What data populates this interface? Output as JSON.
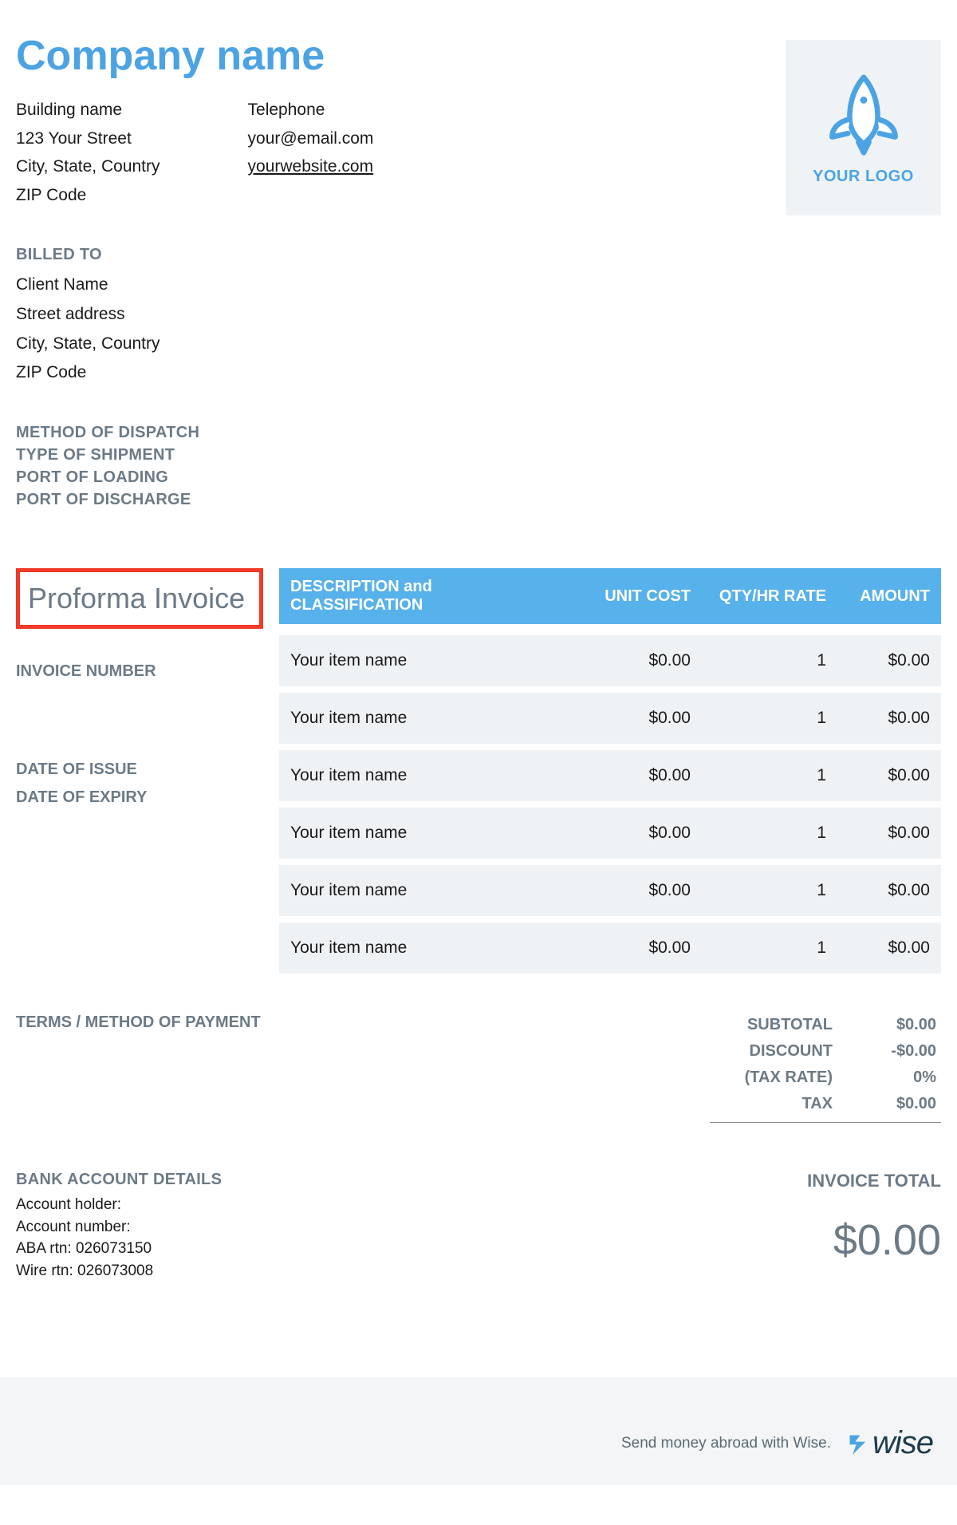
{
  "colors": {
    "accent": "#4ba3e3",
    "table_header_bg": "#57b1ea",
    "row_bg": "#eff2f4",
    "muted_text": "#6b7a86",
    "highlight_border": "#f03a27",
    "footer_bg": "#f3f5f6",
    "logo_box_bg": "#f0f3f5"
  },
  "company": {
    "name": "Company name",
    "address": {
      "building": "Building name",
      "street": "123 Your Street",
      "city_state_country": "City, State, Country",
      "zip": "ZIP Code"
    },
    "contact": {
      "telephone": "Telephone",
      "email": "your@email.com",
      "website": "yourwebsite.com"
    },
    "logo_text": "YOUR LOGO"
  },
  "billed_to": {
    "label": "BILLED TO",
    "name": "Client Name",
    "street": "Street address",
    "city_state_country": "City, State, Country",
    "zip": "ZIP Code"
  },
  "shipping": {
    "method_of_dispatch": "METHOD OF DISPATCH",
    "type_of_shipment": "TYPE OF SHIPMENT",
    "port_of_loading": "PORT OF LOADING",
    "port_of_discharge": "PORT OF DISCHARGE"
  },
  "invoice": {
    "title": "Proforma Invoice",
    "number_label": "INVOICE NUMBER",
    "date_of_issue_label": "DATE OF ISSUE",
    "date_of_expiry_label": "DATE OF EXPIRY",
    "terms_label": "TERMS / METHOD OF PAYMENT"
  },
  "table": {
    "headers": {
      "description": "DESCRIPTION and CLASSIFICATION",
      "unit_cost": "UNIT COST",
      "qty": "QTY/HR RATE",
      "amount": "AMOUNT"
    },
    "rows": [
      {
        "desc": "Your item name",
        "cost": "$0.00",
        "qty": "1",
        "amount": "$0.00"
      },
      {
        "desc": "Your item name",
        "cost": "$0.00",
        "qty": "1",
        "amount": "$0.00"
      },
      {
        "desc": "Your item name",
        "cost": "$0.00",
        "qty": "1",
        "amount": "$0.00"
      },
      {
        "desc": "Your item name",
        "cost": "$0.00",
        "qty": "1",
        "amount": "$0.00"
      },
      {
        "desc": "Your item name",
        "cost": "$0.00",
        "qty": "1",
        "amount": "$0.00"
      },
      {
        "desc": "Your item name",
        "cost": "$0.00",
        "qty": "1",
        "amount": "$0.00"
      }
    ]
  },
  "totals": {
    "subtotal_label": "SUBTOTAL",
    "subtotal": "$0.00",
    "discount_label": "DISCOUNT",
    "discount": "-$0.00",
    "tax_rate_label": "(TAX RATE)",
    "tax_rate": "0%",
    "tax_label": "TAX",
    "tax": "$0.00",
    "invoice_total_label": "INVOICE TOTAL",
    "invoice_total": "$0.00"
  },
  "bank": {
    "label": "BANK ACCOUNT DETAILS",
    "holder": "Account holder:",
    "number": "Account number:",
    "aba": "ABA rtn: 026073150",
    "wire": "Wire rtn: 026073008"
  },
  "footer": {
    "text": "Send money abroad with Wise.",
    "brand": "wise"
  }
}
